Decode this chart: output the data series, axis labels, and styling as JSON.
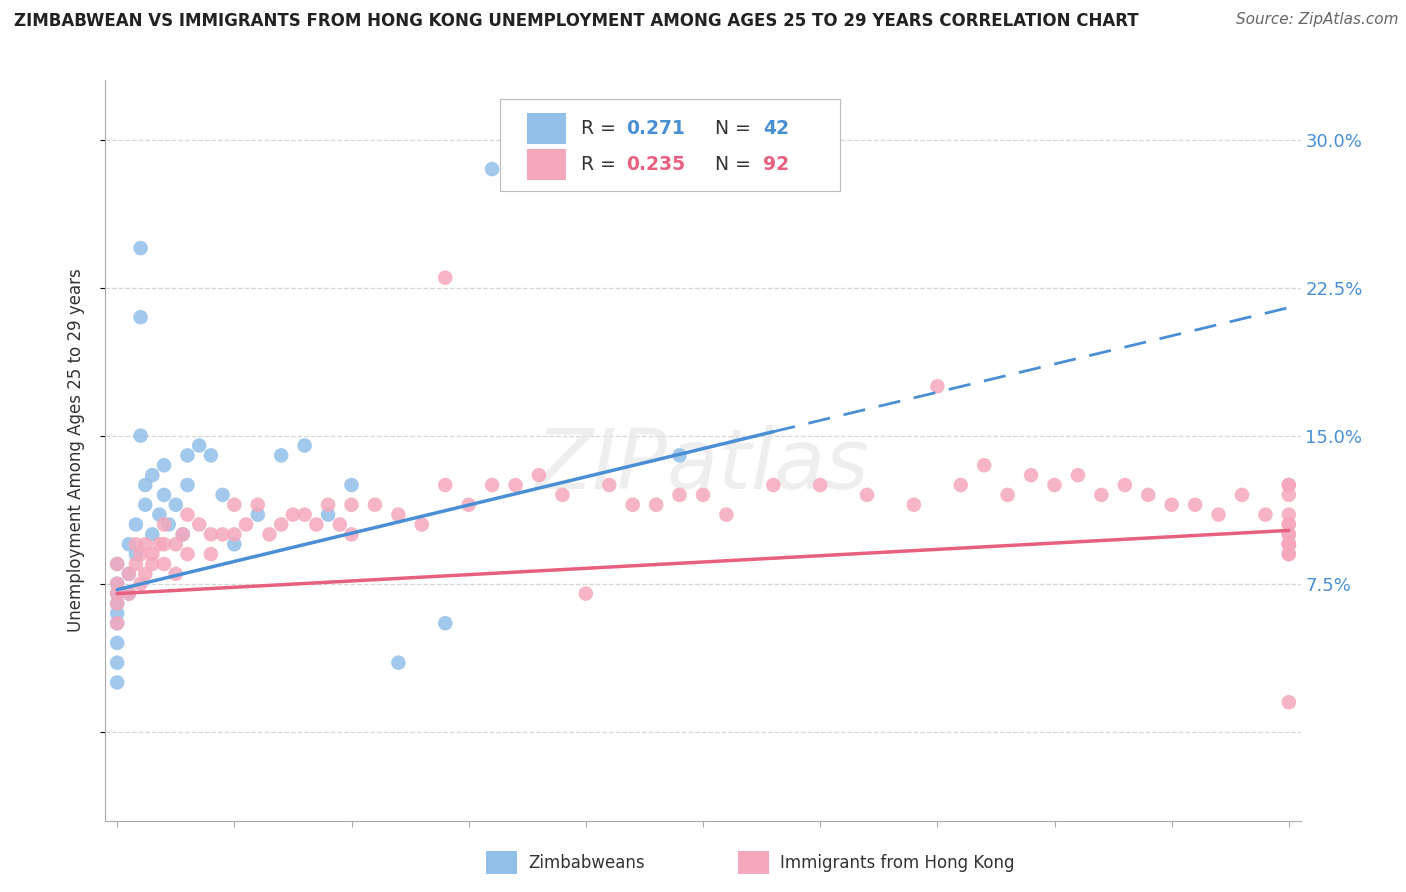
{
  "title": "ZIMBABWEAN VS IMMIGRANTS FROM HONG KONG UNEMPLOYMENT AMONG AGES 25 TO 29 YEARS CORRELATION CHART",
  "source": "Source: ZipAtlas.com",
  "ylabel": "Unemployment Among Ages 25 to 29 years",
  "xlim": [
    -0.05,
    5.05
  ],
  "ylim": [
    -4.5,
    33.0
  ],
  "ytick_vals": [
    0.0,
    7.5,
    15.0,
    22.5,
    30.0
  ],
  "ytick_labels": [
    "",
    "7.5%",
    "15.0%",
    "22.5%",
    "30.0%"
  ],
  "watermark_text": "ZIPatlas",
  "R1": "0.271",
  "N1": "42",
  "R2": "0.235",
  "N2": "92",
  "blue_scatter_color": "#92c0e8",
  "pink_scatter_color": "#f5a8bc",
  "blue_line_color": "#4a8fd4",
  "pink_line_color": "#e86080",
  "zim_x": [
    0.0,
    0.0,
    0.0,
    0.0,
    0.0,
    0.0,
    0.0,
    0.0,
    0.0,
    0.05,
    0.05,
    0.05,
    0.08,
    0.08,
    0.1,
    0.1,
    0.1,
    0.12,
    0.12,
    0.15,
    0.15,
    0.18,
    0.2,
    0.2,
    0.22,
    0.25,
    0.28,
    0.3,
    0.3,
    0.35,
    0.4,
    0.45,
    0.5,
    0.6,
    0.7,
    0.8,
    0.9,
    1.0,
    1.2,
    1.4,
    1.6,
    2.4
  ],
  "zim_y": [
    8.5,
    7.5,
    7.0,
    6.5,
    6.0,
    5.5,
    4.5,
    3.5,
    2.5,
    9.5,
    8.0,
    7.0,
    10.5,
    9.0,
    24.5,
    21.0,
    15.0,
    12.5,
    11.5,
    13.0,
    10.0,
    11.0,
    13.5,
    12.0,
    10.5,
    11.5,
    10.0,
    14.0,
    12.5,
    14.5,
    14.0,
    12.0,
    9.5,
    11.0,
    14.0,
    14.5,
    11.0,
    12.5,
    3.5,
    5.5,
    28.5,
    14.0
  ],
  "hk_x": [
    0.0,
    0.0,
    0.0,
    0.0,
    0.0,
    0.05,
    0.05,
    0.08,
    0.08,
    0.1,
    0.1,
    0.12,
    0.12,
    0.15,
    0.15,
    0.18,
    0.2,
    0.2,
    0.2,
    0.25,
    0.25,
    0.28,
    0.3,
    0.3,
    0.35,
    0.4,
    0.4,
    0.45,
    0.5,
    0.5,
    0.55,
    0.6,
    0.65,
    0.7,
    0.75,
    0.8,
    0.85,
    0.9,
    0.95,
    1.0,
    1.0,
    1.1,
    1.2,
    1.3,
    1.4,
    1.4,
    1.5,
    1.6,
    1.7,
    1.8,
    1.9,
    2.0,
    2.1,
    2.2,
    2.3,
    2.4,
    2.5,
    2.6,
    2.8,
    3.0,
    3.2,
    3.4,
    3.5,
    3.6,
    3.7,
    3.8,
    3.9,
    4.0,
    4.1,
    4.2,
    4.3,
    4.4,
    4.5,
    4.6,
    4.7,
    4.8,
    4.9,
    5.0,
    5.0,
    5.0,
    5.0,
    5.0,
    5.0,
    5.0,
    5.0,
    5.0,
    5.0,
    5.0,
    5.0,
    5.0,
    5.0,
    5.0
  ],
  "hk_y": [
    8.5,
    7.5,
    7.0,
    6.5,
    5.5,
    8.0,
    7.0,
    9.5,
    8.5,
    9.0,
    7.5,
    9.5,
    8.0,
    9.0,
    8.5,
    9.5,
    10.5,
    9.5,
    8.5,
    9.5,
    8.0,
    10.0,
    11.0,
    9.0,
    10.5,
    10.0,
    9.0,
    10.0,
    11.5,
    10.0,
    10.5,
    11.5,
    10.0,
    10.5,
    11.0,
    11.0,
    10.5,
    11.5,
    10.5,
    11.5,
    10.0,
    11.5,
    11.0,
    10.5,
    23.0,
    12.5,
    11.5,
    12.5,
    12.5,
    13.0,
    12.0,
    7.0,
    12.5,
    11.5,
    11.5,
    12.0,
    12.0,
    11.0,
    12.5,
    12.5,
    12.0,
    11.5,
    17.5,
    12.5,
    13.5,
    12.0,
    13.0,
    12.5,
    13.0,
    12.0,
    12.5,
    12.0,
    11.5,
    11.5,
    11.0,
    12.0,
    11.0,
    12.5,
    12.0,
    12.5,
    9.5,
    9.0,
    9.5,
    9.0,
    10.5,
    10.0,
    9.5,
    10.0,
    9.5,
    10.5,
    11.0,
    1.5
  ],
  "blue_trend_x0": 0.0,
  "blue_trend_x1": 2.8,
  "blue_trend_xdash": 5.0,
  "blue_trend_y0": 7.2,
  "blue_trend_y1": 15.2,
  "blue_trend_ydash": 20.5,
  "pink_trend_x0": 0.0,
  "pink_trend_x1": 5.0,
  "pink_trend_y0": 7.0,
  "pink_trend_y1": 10.2
}
